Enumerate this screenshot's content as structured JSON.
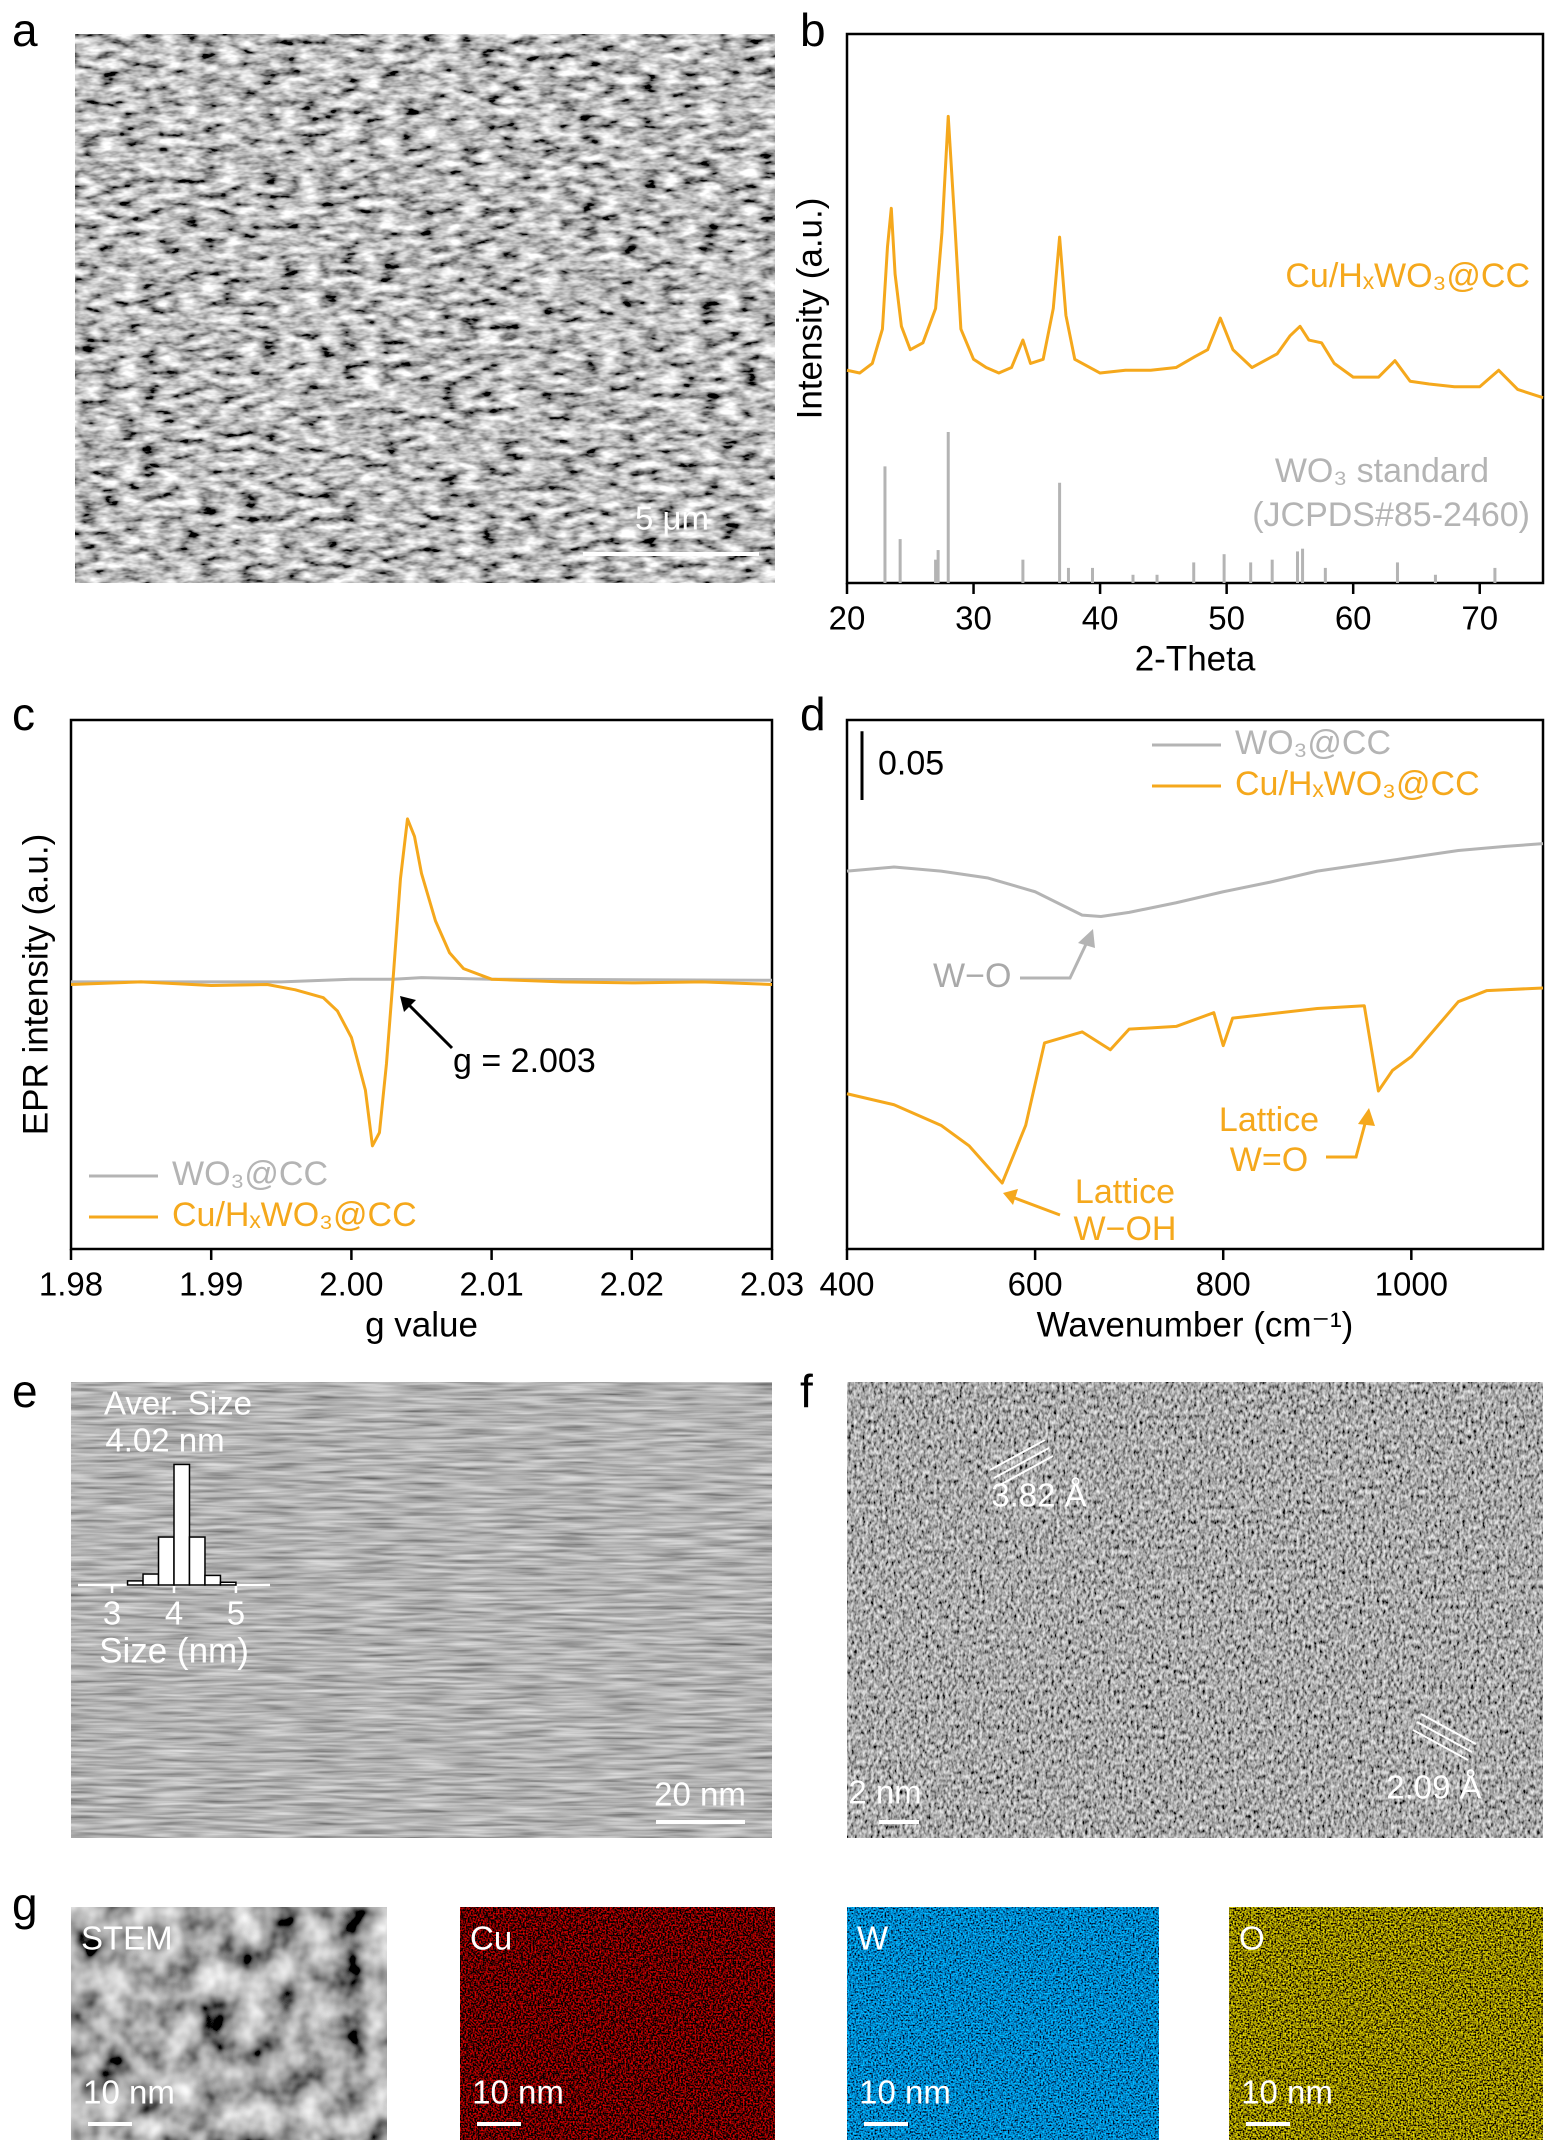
{
  "panel_labels": [
    "a",
    "b",
    "c",
    "d",
    "e",
    "f",
    "g"
  ],
  "chart_data": [
    {
      "type": "line",
      "xlabel": "2-Theta",
      "ylabel": "Intensity (a.u.)",
      "xlim": [
        20,
        75
      ],
      "xticks": [
        20,
        30,
        40,
        50,
        60,
        70
      ],
      "ylim": [
        0,
        100
      ],
      "series": [
        {
          "name": "Cu/HₓWO₃@CC",
          "color": "#f5a81c",
          "x": [
            20,
            21,
            22,
            22.8,
            23.2,
            23.5,
            23.8,
            24.3,
            25,
            26,
            27,
            27.5,
            28,
            28.5,
            29,
            30,
            31,
            32,
            33,
            33.9,
            34.5,
            35.5,
            36.3,
            36.8,
            37.3,
            38,
            40,
            42,
            44,
            46,
            47.5,
            48.5,
            49.5,
            50.5,
            52,
            54,
            55,
            55.8,
            56.5,
            57.5,
            58.5,
            60,
            62,
            63.3,
            64.5,
            66,
            68,
            70,
            71.5,
            73,
            75
          ],
          "values": [
            38.75,
            38.25,
            40,
            46.25,
            61.25,
            68.25,
            56.25,
            46.75,
            42.5,
            43.75,
            50,
            63.75,
            85,
            66.25,
            46.25,
            40.75,
            39.25,
            38.25,
            39.25,
            44.25,
            40,
            40.75,
            50,
            63,
            48.75,
            40.75,
            38.25,
            38.75,
            38.75,
            39.25,
            41.25,
            42.5,
            48.25,
            42.5,
            39.25,
            41.75,
            45,
            46.75,
            44.25,
            43.75,
            40,
            37.5,
            37.5,
            40.5,
            36.75,
            36.25,
            35.75,
            35.75,
            38.75,
            35.25,
            33.75
          ]
        },
        {
          "name": "WO₃ standard",
          "color": "#b4b4b4",
          "type": "stick",
          "x": [
            23.0,
            24.2,
            27.0,
            27.2,
            28.0,
            33.9,
            36.8,
            37.5,
            39.4,
            42.6,
            44.5,
            47.4,
            49.8,
            51.9,
            53.6,
            55.6,
            56.0,
            57.8,
            63.5,
            66.5,
            71.2
          ],
          "values": [
            21.25,
            8,
            4.25,
            6,
            27.5,
            4.25,
            18.25,
            2.75,
            2.75,
            1.5,
            1.5,
            3.75,
            5.25,
            3.75,
            4.25,
            5.75,
            6.25,
            2.75,
            3.75,
            1.5,
            2.75
          ]
        }
      ],
      "annotations": [
        "(JCPDS#85-2460)"
      ]
    },
    {
      "type": "line",
      "xlabel": "g value",
      "ylabel": "EPR intensity (a.u.)",
      "xlim": [
        1.98,
        2.03
      ],
      "xticks": [
        1.98,
        1.99,
        {
          "value": 2,
          "label": "2.00"
        },
        2.01,
        2.02,
        2.03
      ],
      "ylim": [
        0,
        100
      ],
      "legend": "lower left",
      "series": [
        {
          "name": "WO₃@CC",
          "color": "#b4b4b4",
          "x": [
            1.98,
            1.995,
            2.0,
            2.003,
            2.005,
            2.01,
            2.03
          ],
          "values": [
            50.5,
            50.5,
            51,
            51,
            51.3,
            51,
            50.8
          ]
        },
        {
          "name": "Cu/HₓWO₃@CC",
          "color": "#f5a81c",
          "x": [
            1.98,
            1.985,
            1.99,
            1.994,
            1.996,
            1.998,
            1.999,
            2.0,
            2.001,
            2.0015,
            2.002,
            2.0025,
            2.003,
            2.0035,
            2.004,
            2.0045,
            2.005,
            2.006,
            2.007,
            2.008,
            2.01,
            2.015,
            2.02,
            2.025,
            2.03
          ],
          "values": [
            50,
            50.5,
            49.8,
            50,
            49,
            47.5,
            45,
            40,
            30,
            19.5,
            22,
            35,
            52,
            70,
            81.3,
            78,
            71,
            62,
            56,
            53,
            51,
            50.5,
            50.3,
            50.5,
            50
          ]
        }
      ],
      "annotations": [
        "g = 2.003"
      ]
    },
    {
      "type": "line",
      "xlabel": "Wavenumber (cm⁻¹)",
      "xlim": [
        400,
        1140
      ],
      "xticks": [
        400,
        600,
        800,
        1000
      ],
      "ylim": [
        0,
        0.385
      ],
      "scale_bar": 0.05,
      "legend": "upper right",
      "series": [
        {
          "name": "WO₃@CC",
          "color": "#b4b4b4",
          "x": [
            400,
            450,
            500,
            550,
            600,
            650,
            670,
            700,
            750,
            800,
            850,
            900,
            950,
            1000,
            1050,
            1100,
            1140
          ],
          "values": [
            0.275,
            0.278,
            0.275,
            0.27,
            0.26,
            0.243,
            0.242,
            0.245,
            0.252,
            0.26,
            0.267,
            0.275,
            0.28,
            0.285,
            0.29,
            0.293,
            0.295
          ]
        },
        {
          "name": "Cu/HₓWO₃@CC",
          "color": "#f5a81c",
          "x": [
            400,
            450,
            500,
            530,
            565,
            590,
            610,
            650,
            680,
            700,
            750,
            790,
            800,
            810,
            900,
            950,
            965,
            980,
            1000,
            1050,
            1080,
            1140
          ],
          "values": [
            0.113,
            0.105,
            0.09,
            0.075,
            0.048,
            0.09,
            0.15,
            0.158,
            0.145,
            0.16,
            0.162,
            0.172,
            0.148,
            0.168,
            0.175,
            0.177,
            0.115,
            0.13,
            0.14,
            0.18,
            0.188,
            0.19
          ]
        }
      ],
      "annotations": [
        "W−O",
        "Lattice",
        "W−OH",
        "Lattice",
        "W=O"
      ]
    },
    {
      "type": "histogram",
      "title": "Aver. Size",
      "subtitle": "4.02 nm",
      "xlabel": "Size (nm)",
      "xlim": [
        2.45,
        5.55
      ],
      "xticks": [
        3,
        4,
        5
      ],
      "ylim": [
        0,
        100
      ],
      "bins": [
        3.25,
        3.5,
        3.75,
        4.0,
        4.25,
        4.5,
        4.75,
        5.0
      ],
      "values": [
        3,
        8,
        35,
        88,
        35,
        7,
        2
      ]
    }
  ],
  "images": {
    "a": {
      "scale_bar": "5 μm"
    },
    "e": {
      "scale_bar": "20 nm"
    },
    "f": {
      "scale_bar": "2 nm",
      "annotations": [
        "3.82 Å",
        "2.09 Å"
      ]
    },
    "g": [
      {
        "label": "STEM",
        "scale_bar": "10 nm"
      },
      {
        "label": "Cu",
        "scale_bar": "10 nm"
      },
      {
        "label": "W",
        "scale_bar": "10 nm"
      },
      {
        "label": "O",
        "scale_bar": "10 nm"
      }
    ]
  }
}
